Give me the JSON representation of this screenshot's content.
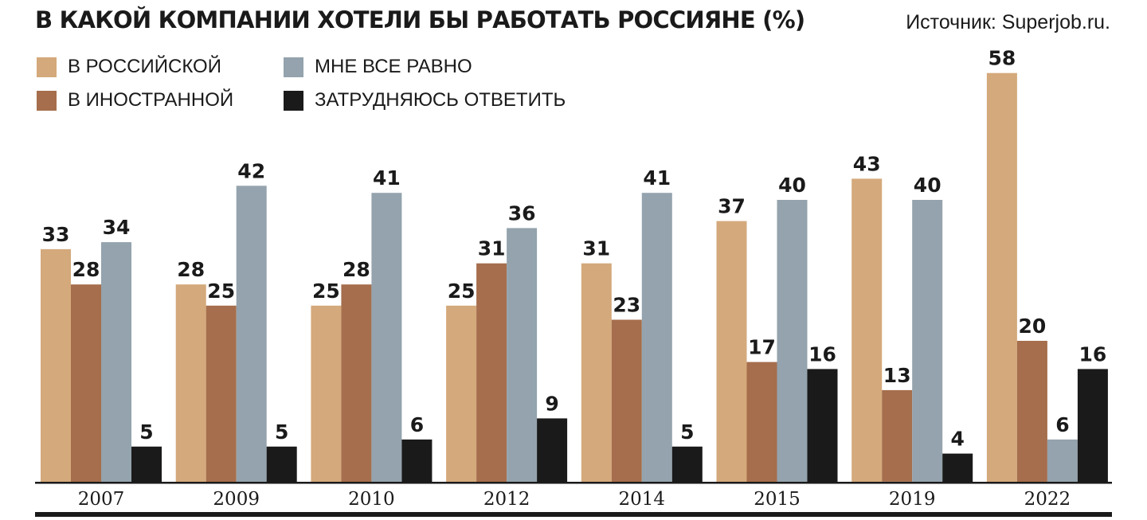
{
  "header": {
    "title": "В КАКОЙ КОМПАНИИ ХОТЕЛИ БЫ РАБОТАТЬ РОССИЯНЕ (%)",
    "source": "Источник: Superjob.ru."
  },
  "legend": [
    {
      "label": "В РОССИЙСКОЙ",
      "color": "#d4a97b"
    },
    {
      "label": "В ИНОСТРАННОЙ",
      "color": "#a66e4c"
    },
    {
      "label": "МНЕ ВСЕ РАВНО",
      "color": "#94a3ad"
    },
    {
      "label": "ЗАТРУДНЯЮСЬ ОТВЕТИТЬ",
      "color": "#1a1a1a"
    }
  ],
  "chart_data": {
    "type": "bar",
    "title": "В КАКОЙ КОМПАНИИ ХОТЕЛИ БЫ РАБОТАТЬ РОССИЯНЕ (%)",
    "categories": [
      "2007",
      "2009",
      "2010",
      "2012",
      "2014",
      "2015",
      "2019",
      "2022"
    ],
    "series": [
      {
        "name": "В РОССИЙСКОЙ",
        "color": "#d4a97b",
        "values": [
          33,
          28,
          25,
          25,
          31,
          37,
          43,
          58
        ]
      },
      {
        "name": "В ИНОСТРАННОЙ",
        "color": "#a66e4c",
        "values": [
          28,
          25,
          28,
          31,
          23,
          17,
          13,
          20
        ]
      },
      {
        "name": "МНЕ ВСЕ РАВНО",
        "color": "#94a3ad",
        "values": [
          34,
          42,
          41,
          36,
          41,
          40,
          40,
          6
        ]
      },
      {
        "name": "ЗАТРУДНЯЮСЬ ОТВЕТИТЬ",
        "color": "#1a1a1a",
        "values": [
          5,
          5,
          6,
          9,
          5,
          16,
          4,
          16
        ]
      }
    ],
    "ylim": [
      0,
      58
    ],
    "xlabel": "",
    "ylabel": "",
    "grid": false,
    "data_labels": true,
    "legend_position": "top-left"
  }
}
